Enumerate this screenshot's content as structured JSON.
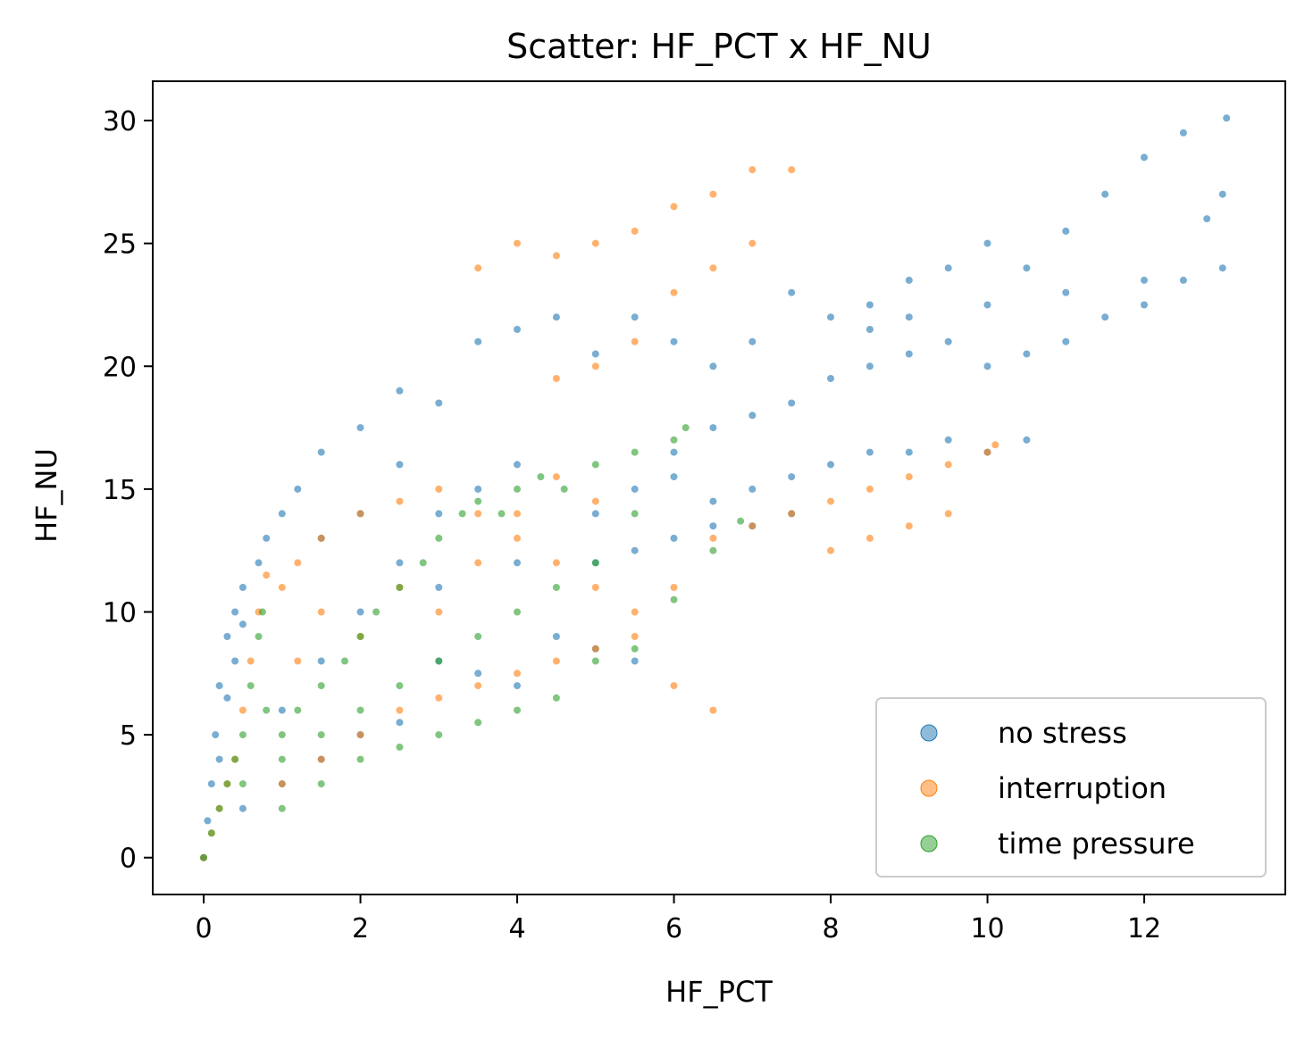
{
  "chart_data": {
    "type": "scatter",
    "title": "Scatter: HF_PCT x HF_NU",
    "xlabel": "HF_PCT",
    "ylabel": "HF_NU",
    "xlim": [
      -0.65,
      13.8
    ],
    "ylim": [
      -1.5,
      31.6
    ],
    "xticks": [
      0,
      2,
      4,
      6,
      8,
      10,
      12
    ],
    "yticks": [
      0,
      5,
      10,
      15,
      20,
      25,
      30
    ],
    "grid": false,
    "legend_position": "lower-right",
    "colors": {
      "no_stress": "#1f77b4",
      "interruption": "#ff7f0e",
      "time_pressure": "#2ca02c"
    },
    "series": [
      {
        "name": "no stress",
        "color": "#1f77b4",
        "points": [
          [
            0,
            0
          ],
          [
            0.05,
            1.5
          ],
          [
            0.1,
            3
          ],
          [
            0.15,
            5
          ],
          [
            0.2,
            7
          ],
          [
            0.2,
            4
          ],
          [
            0.3,
            6.5
          ],
          [
            0.4,
            8
          ],
          [
            0.5,
            9.5
          ],
          [
            0.5,
            11
          ],
          [
            0.7,
            12
          ],
          [
            0.8,
            13
          ],
          [
            1,
            14
          ],
          [
            1.5,
            16.5
          ],
          [
            1.2,
            15
          ],
          [
            2,
            17.5
          ],
          [
            2.5,
            19
          ],
          [
            3,
            18.5
          ],
          [
            3.5,
            21
          ],
          [
            4,
            21.5
          ],
          [
            4.5,
            22
          ],
          [
            5,
            20.5
          ],
          [
            5.5,
            22
          ],
          [
            6,
            21
          ],
          [
            6.5,
            20
          ],
          [
            7,
            21
          ],
          [
            7.5,
            23
          ],
          [
            8,
            22
          ],
          [
            8.5,
            22.5
          ],
          [
            9,
            23.5
          ],
          [
            9.5,
            24
          ],
          [
            10,
            25
          ],
          [
            10.5,
            24
          ],
          [
            11,
            25.5
          ],
          [
            11.5,
            27
          ],
          [
            12,
            28.5
          ],
          [
            12.5,
            29.5
          ],
          [
            13.05,
            30.1
          ],
          [
            13,
            27
          ],
          [
            12.8,
            26
          ],
          [
            13,
            24
          ],
          [
            12.5,
            23.5
          ],
          [
            12,
            22.5
          ],
          [
            11.5,
            22
          ],
          [
            11,
            21
          ],
          [
            10.5,
            20.5
          ],
          [
            10,
            20
          ],
          [
            9.5,
            21
          ],
          [
            9,
            20.5
          ],
          [
            8.5,
            20
          ],
          [
            8,
            19.5
          ],
          [
            7.5,
            18.5
          ],
          [
            7,
            18
          ],
          [
            6.5,
            17.5
          ],
          [
            6,
            16.5
          ],
          [
            6.5,
            14.5
          ],
          [
            7,
            15
          ],
          [
            7.5,
            15.5
          ],
          [
            8,
            16
          ],
          [
            8.5,
            16.5
          ],
          [
            9,
            16.5
          ],
          [
            9.5,
            17
          ],
          [
            10,
            16.5
          ],
          [
            10.5,
            17
          ],
          [
            5,
            12
          ],
          [
            5.5,
            12.5
          ],
          [
            6,
            13
          ],
          [
            6.5,
            13.5
          ],
          [
            7,
            13.5
          ],
          [
            7.5,
            14
          ],
          [
            4.5,
            9
          ],
          [
            5,
            8.5
          ],
          [
            5.5,
            8
          ],
          [
            3,
            8
          ],
          [
            3.5,
            7.5
          ],
          [
            4,
            7
          ],
          [
            2,
            5
          ],
          [
            2.5,
            5.5
          ],
          [
            1.5,
            4
          ],
          [
            1,
            3
          ],
          [
            0.5,
            2
          ],
          [
            1,
            6
          ],
          [
            1.5,
            8
          ],
          [
            2,
            10
          ],
          [
            2.5,
            12
          ],
          [
            3,
            14
          ],
          [
            3.5,
            15
          ],
          [
            4,
            16
          ],
          [
            2,
            14
          ],
          [
            2.5,
            16
          ],
          [
            1.5,
            13
          ],
          [
            0.3,
            9
          ],
          [
            0.4,
            10
          ],
          [
            3,
            11
          ],
          [
            4,
            12
          ],
          [
            5,
            14
          ],
          [
            5.5,
            15
          ],
          [
            6,
            15.5
          ],
          [
            8.5,
            21.5
          ],
          [
            9,
            22
          ],
          [
            10,
            22.5
          ],
          [
            11,
            23
          ],
          [
            12,
            23.5
          ]
        ]
      },
      {
        "name": "interruption",
        "color": "#ff7f0e",
        "points": [
          [
            0,
            0
          ],
          [
            0.1,
            1
          ],
          [
            0.2,
            2
          ],
          [
            0.3,
            3
          ],
          [
            0.4,
            4
          ],
          [
            0.5,
            6
          ],
          [
            0.6,
            8
          ],
          [
            0.7,
            10
          ],
          [
            0.8,
            11.5
          ],
          [
            1,
            11
          ],
          [
            1.2,
            12
          ],
          [
            1.5,
            13
          ],
          [
            2,
            14
          ],
          [
            2.5,
            14.5
          ],
          [
            3,
            15
          ],
          [
            3.5,
            14
          ],
          [
            4,
            13
          ],
          [
            4.5,
            12
          ],
          [
            5,
            11
          ],
          [
            5.5,
            9
          ],
          [
            6,
            7
          ],
          [
            6.5,
            6
          ],
          [
            1,
            3
          ],
          [
            1.5,
            4
          ],
          [
            2,
            5
          ],
          [
            2.5,
            6
          ],
          [
            3,
            6.5
          ],
          [
            3.5,
            7
          ],
          [
            4,
            7.5
          ],
          [
            4.5,
            8
          ],
          [
            5,
            8.5
          ],
          [
            5.5,
            10
          ],
          [
            6,
            11
          ],
          [
            6.5,
            13
          ],
          [
            7,
            13.5
          ],
          [
            7.5,
            14
          ],
          [
            8,
            14.5
          ],
          [
            8.5,
            15
          ],
          [
            9,
            15.5
          ],
          [
            9.5,
            16
          ],
          [
            10,
            16.5
          ],
          [
            10.1,
            16.8
          ],
          [
            8,
            12.5
          ],
          [
            8.5,
            13
          ],
          [
            9,
            13.5
          ],
          [
            9.5,
            14
          ],
          [
            3.5,
            24
          ],
          [
            4,
            25
          ],
          [
            4.5,
            24.5
          ],
          [
            5,
            25
          ],
          [
            5.5,
            25.5
          ],
          [
            6,
            26.5
          ],
          [
            6.5,
            27
          ],
          [
            7,
            28
          ],
          [
            7.5,
            28
          ],
          [
            7,
            25
          ],
          [
            6.5,
            24
          ],
          [
            6,
            23
          ],
          [
            5.5,
            21
          ],
          [
            5,
            20
          ],
          [
            4.5,
            19.5
          ],
          [
            3,
            10
          ],
          [
            3.5,
            12
          ],
          [
            4,
            14
          ],
          [
            2,
            9
          ],
          [
            2.5,
            11
          ],
          [
            1.2,
            8
          ],
          [
            1.5,
            10
          ],
          [
            4.5,
            15.5
          ],
          [
            5,
            14.5
          ]
        ]
      },
      {
        "name": "time pressure",
        "color": "#2ca02c",
        "points": [
          [
            0,
            0
          ],
          [
            0.1,
            1
          ],
          [
            0.2,
            2
          ],
          [
            0.3,
            3
          ],
          [
            0.4,
            4
          ],
          [
            0.5,
            5
          ],
          [
            0.6,
            7
          ],
          [
            0.7,
            9
          ],
          [
            0.75,
            10
          ],
          [
            0.8,
            6
          ],
          [
            1,
            5
          ],
          [
            1.2,
            6
          ],
          [
            1.5,
            7
          ],
          [
            1.8,
            8
          ],
          [
            2,
            9
          ],
          [
            2.2,
            10
          ],
          [
            2.5,
            11
          ],
          [
            2.8,
            12
          ],
          [
            3,
            13
          ],
          [
            3.3,
            14
          ],
          [
            3.5,
            14.5
          ],
          [
            3.8,
            14
          ],
          [
            4,
            15
          ],
          [
            4.3,
            15.5
          ],
          [
            4.6,
            15
          ],
          [
            5,
            16
          ],
          [
            5.5,
            16.5
          ],
          [
            6,
            17
          ],
          [
            6.15,
            17.5
          ],
          [
            5.5,
            14
          ],
          [
            5,
            12
          ],
          [
            4.5,
            11
          ],
          [
            4,
            10
          ],
          [
            3.5,
            9
          ],
          [
            3,
            8
          ],
          [
            2.5,
            7
          ],
          [
            2,
            6
          ],
          [
            1.5,
            5
          ],
          [
            1,
            4
          ],
          [
            0.5,
            3
          ],
          [
            4,
            6
          ],
          [
            4.5,
            6.5
          ],
          [
            5,
            8
          ],
          [
            5.5,
            8.5
          ],
          [
            6,
            10.5
          ],
          [
            6.5,
            12.5
          ],
          [
            6.85,
            13.7
          ],
          [
            3,
            5
          ],
          [
            3.5,
            5.5
          ],
          [
            2,
            4
          ],
          [
            2.5,
            4.5
          ],
          [
            1,
            2
          ],
          [
            1.5,
            3
          ]
        ]
      }
    ]
  }
}
